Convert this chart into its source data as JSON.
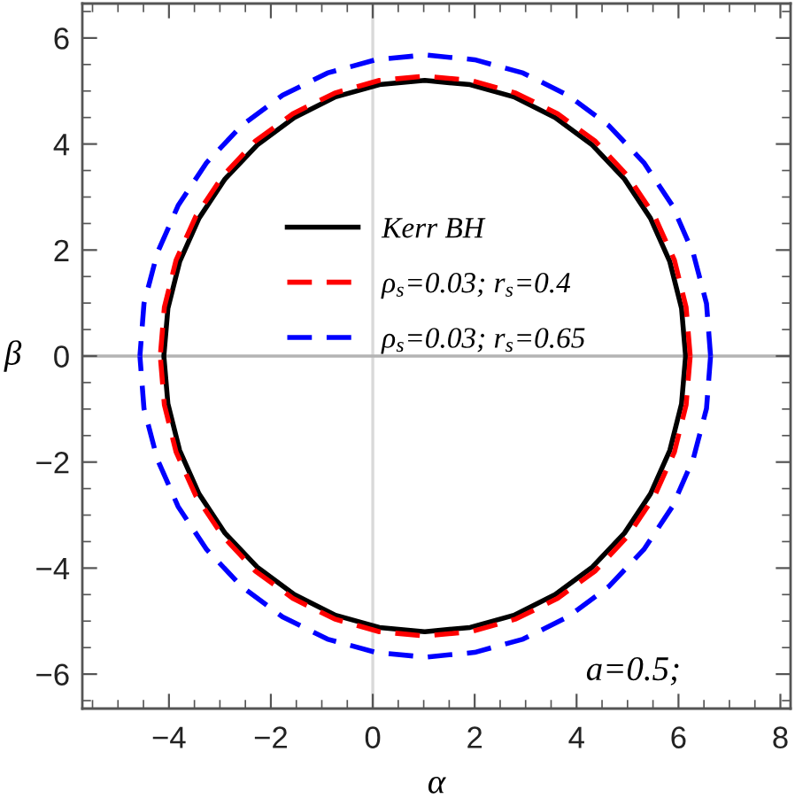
{
  "chart_data": {
    "type": "line",
    "xlabel": "α",
    "ylabel": "β",
    "xlim": [
      -5.7,
      8.2
    ],
    "ylim": [
      -6.65,
      6.65
    ],
    "xticks": [
      {
        "value": -4,
        "label": "−4"
      },
      {
        "value": -2,
        "label": "−2"
      },
      0,
      2,
      4,
      6,
      8
    ],
    "yticks": [
      {
        "value": -6,
        "label": "−6"
      },
      {
        "value": -4,
        "label": "−4"
      },
      {
        "value": -2,
        "label": "−2"
      },
      0,
      2,
      4,
      6
    ],
    "legend": "center",
    "annotations": [
      "a=0.5;"
    ],
    "ref_lines": [
      {
        "axis": "x",
        "value": 0,
        "color": "#d9d9d9"
      },
      {
        "axis": "y",
        "value": 0,
        "color": "#b3b3b3"
      }
    ],
    "series": [
      {
        "name": "Kerr BH",
        "color": "#000000",
        "line_style": "solid",
        "x": [
          6.14,
          6.06,
          5.83,
          5.45,
          4.94,
          4.31,
          3.58,
          2.77,
          1.91,
          1.02,
          0.13,
          -0.73,
          -1.54,
          -2.27,
          -2.9,
          -3.41,
          -3.79,
          -4.02,
          -4.1,
          null,
          6.14,
          6.06,
          5.83,
          5.45,
          4.94,
          4.31,
          3.58,
          2.77,
          1.91,
          1.02,
          0.13,
          -0.73,
          -1.54,
          -2.27,
          -2.9,
          -3.41,
          -3.79,
          -4.02,
          -4.1
        ],
        "values": [
          0,
          0.9,
          1.78,
          2.6,
          3.34,
          3.98,
          4.5,
          4.89,
          5.12,
          5.2,
          5.12,
          4.89,
          4.5,
          3.98,
          3.34,
          2.6,
          1.78,
          0.9,
          0,
          null,
          0,
          -0.9,
          -1.78,
          -2.6,
          -3.34,
          -3.98,
          -4.5,
          -4.89,
          -5.12,
          -5.2,
          -5.12,
          -4.89,
          -4.5,
          -3.98,
          -3.34,
          -2.6,
          -1.78,
          -0.9,
          0
        ]
      },
      {
        "name": "ρ$_{s}$=0.03; r$_{s}$=0.4",
        "color": "#ff0000",
        "line_style": "dashed",
        "x": [
          6.23,
          6.15,
          5.92,
          5.53,
          5.01,
          4.37,
          3.63,
          2.81,
          1.93,
          1.03,
          0.13,
          -0.75,
          -1.57,
          -2.31,
          -2.95,
          -3.47,
          -3.86,
          -4.09,
          -4.17,
          null,
          6.23,
          6.15,
          5.92,
          5.53,
          5.01,
          4.37,
          3.63,
          2.81,
          1.93,
          1.03,
          0.13,
          -0.75,
          -1.57,
          -2.31,
          -2.95,
          -3.47,
          -3.86,
          -4.09,
          -4.17
        ],
        "values": [
          0,
          0.92,
          1.81,
          2.64,
          3.39,
          4.05,
          4.57,
          4.96,
          5.2,
          5.28,
          5.2,
          4.96,
          4.57,
          4.05,
          3.39,
          2.64,
          1.81,
          0.92,
          0,
          null,
          0,
          -0.92,
          -1.81,
          -2.64,
          -3.39,
          -4.05,
          -4.57,
          -4.96,
          -5.2,
          -5.28,
          -5.2,
          -4.96,
          -4.57,
          -4.05,
          -3.39,
          -2.64,
          -1.81,
          -0.92,
          0
        ]
      },
      {
        "name": "ρ$_{s}$=0.03; r$_{s}$=0.65",
        "color": "#0000ff",
        "line_style": "dashed",
        "x": [
          6.63,
          6.55,
          6.29,
          5.88,
          5.32,
          4.63,
          3.83,
          2.95,
          2.0,
          1.03,
          0.06,
          -0.89,
          -1.77,
          -2.57,
          -3.26,
          -3.82,
          -4.23,
          -4.49,
          -4.57,
          null,
          6.63,
          6.55,
          6.29,
          5.88,
          5.32,
          4.63,
          3.83,
          2.95,
          2.0,
          1.03,
          0.06,
          -0.89,
          -1.77,
          -2.57,
          -3.26,
          -3.82,
          -4.23,
          -4.49,
          -4.57
        ],
        "values": [
          0,
          0.99,
          1.94,
          2.84,
          3.65,
          4.35,
          4.92,
          5.34,
          5.59,
          5.68,
          5.59,
          5.34,
          4.92,
          4.35,
          3.65,
          2.84,
          1.94,
          0.99,
          0,
          null,
          0,
          -0.99,
          -1.94,
          -2.84,
          -3.65,
          -4.35,
          -4.92,
          -5.34,
          -5.59,
          -5.68,
          -5.59,
          -5.34,
          -4.92,
          -4.35,
          -3.65,
          -2.84,
          -1.94,
          -0.99,
          0
        ]
      }
    ]
  }
}
